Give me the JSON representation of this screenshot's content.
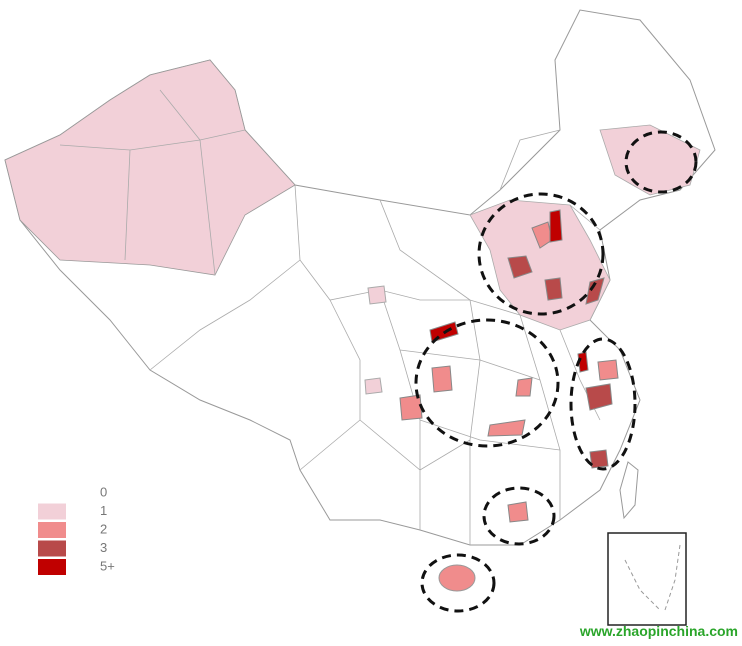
{
  "legend": {
    "items": [
      {
        "label": "0",
        "color": "#ffffff"
      },
      {
        "label": "1",
        "color": "#f2d0d8"
      },
      {
        "label": "2",
        "color": "#f08c8c"
      },
      {
        "label": "3",
        "color": "#b84a4a"
      },
      {
        "label": "5+",
        "color": "#c00000"
      }
    ]
  },
  "watermark": "www.zhaopinchina.com"
}
